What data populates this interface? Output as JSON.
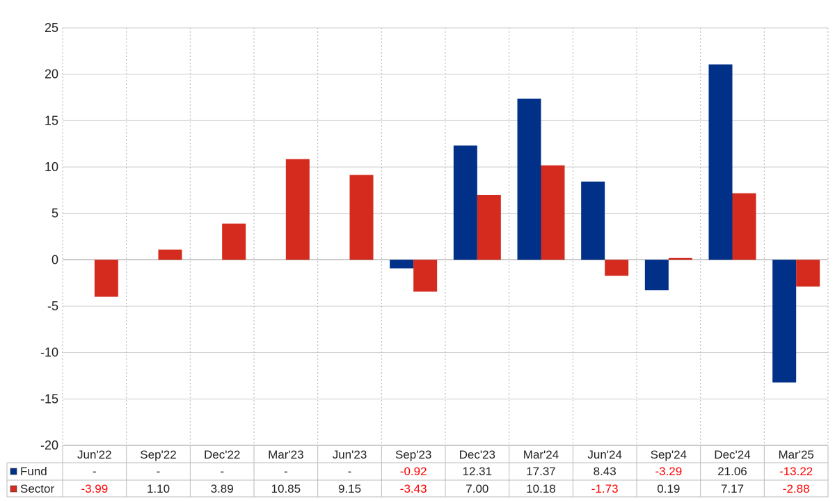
{
  "chart_data": {
    "type": "bar",
    "categories": [
      "Jun'22",
      "Sep'22",
      "Dec'22",
      "Mar'23",
      "Jun'23",
      "Sep'23",
      "Dec'23",
      "Mar'24",
      "Jun'24",
      "Sep'24",
      "Dec'24",
      "Mar'25"
    ],
    "series": [
      {
        "name": "Fund",
        "color": "#003087",
        "values": [
          null,
          null,
          null,
          null,
          null,
          -0.92,
          12.31,
          17.37,
          8.43,
          -3.29,
          21.06,
          -13.22
        ],
        "labels": [
          "-",
          "-",
          "-",
          "-",
          "-",
          "-0.92",
          "12.31",
          "17.37",
          "8.43",
          "-3.29",
          "21.06",
          "-13.22"
        ]
      },
      {
        "name": "Sector",
        "color": "#d52b1e",
        "values": [
          -3.99,
          1.1,
          3.89,
          10.85,
          9.15,
          -3.43,
          7.0,
          10.18,
          -1.73,
          0.19,
          7.17,
          -2.88
        ],
        "labels": [
          "-3.99",
          "1.10",
          "3.89",
          "10.85",
          "9.15",
          "-3.43",
          "7.00",
          "10.18",
          "-1.73",
          "0.19",
          "7.17",
          "-2.88"
        ]
      }
    ],
    "ylim": [
      -20,
      25
    ],
    "yticks": [
      "25",
      "20",
      "15",
      "10",
      "5",
      "0",
      "-5",
      "-10",
      "-15",
      "-20"
    ],
    "grid": true,
    "legend": "data table below chart",
    "negative_label_color": "#ff0000",
    "positive_label_color": "#222222"
  }
}
